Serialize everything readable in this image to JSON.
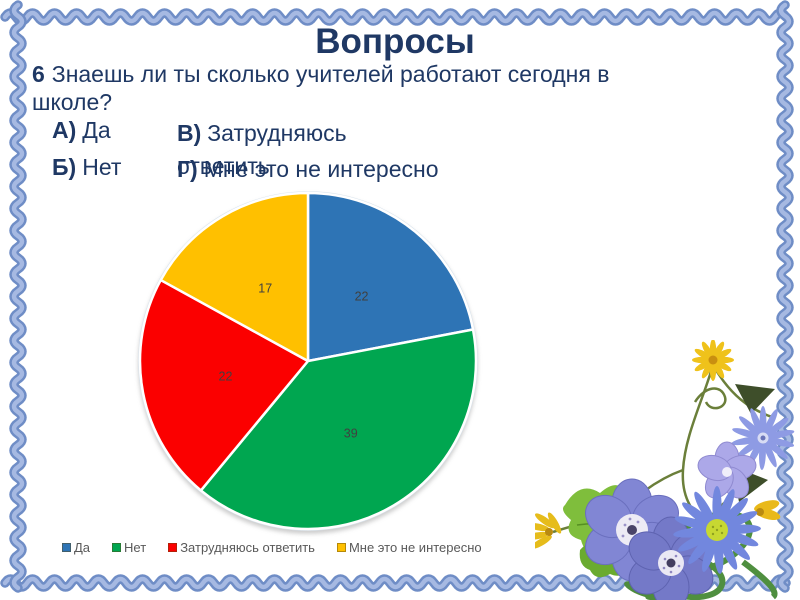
{
  "slide": {
    "title": "Вопросы",
    "question": {
      "number": "6",
      "text": "Знаешь ли ты сколько учителей работают сегодня в школе?"
    },
    "answers": [
      {
        "letter": "А)",
        "text": "Да"
      },
      {
        "letter": "Б)",
        "text": "Нет"
      },
      {
        "letter": "В)",
        "text": "Затрудняюсь ответить"
      },
      {
        "letter": "Г)",
        "text": "Мне это не интересно"
      }
    ]
  },
  "chart_data": {
    "type": "pie",
    "categories": [
      "Да",
      "Нет",
      "Затрудняюсь ответить",
      "Мне это не интересно"
    ],
    "values": [
      22,
      39,
      22,
      17
    ],
    "colors": [
      "#2E74B5",
      "#00A650",
      "#FB0000",
      "#FFC000"
    ],
    "data_labels": "values",
    "label_color": "#404040",
    "start_angle_deg": 0,
    "direction": "clockwise",
    "legend_position": "bottom",
    "legend_text_color": "#595959"
  },
  "decor": {
    "border_dark": "#6F8DC6",
    "border_light": "#A6B9E2",
    "title_color": "#1F3864"
  }
}
